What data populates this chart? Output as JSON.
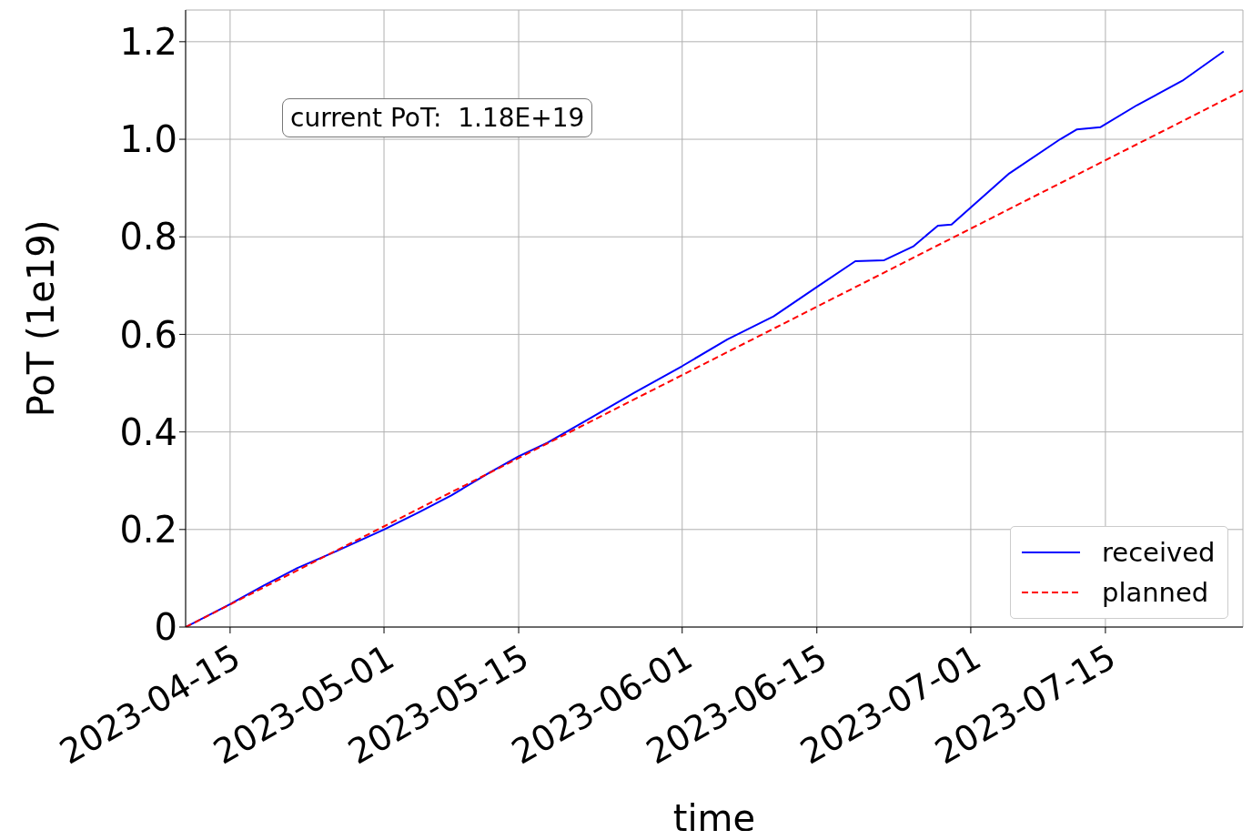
{
  "chart_data": {
    "type": "line",
    "xlabel": "time",
    "ylabel": "PoT (1e19)",
    "annotations": [
      "current PoT:  1.18E+19"
    ],
    "xlim": [
      "2023-04-10T09:00",
      "2023-07-29T07:00"
    ],
    "xticks": [
      "2023-04-15",
      "2023-05-01",
      "2023-05-15",
      "2023-06-01",
      "2023-06-15",
      "2023-07-01",
      "2023-07-15"
    ],
    "ylim": [
      0,
      1.265
    ],
    "yticks": [
      0,
      {
        "value": 0.2,
        "label": "0.2"
      },
      {
        "value": 0.4,
        "label": "0.4"
      },
      {
        "value": 0.6,
        "label": "0.6"
      },
      {
        "value": 0.8,
        "label": "0.8"
      },
      {
        "value": 1.0,
        "label": "1.0"
      },
      {
        "value": 1.2,
        "label": "1.2"
      }
    ],
    "grid": true,
    "legend": "bottom right",
    "series": [
      {
        "name": "received",
        "color": "#0000ff",
        "line_style": "solid",
        "x": [
          "2023-04-10T09:00",
          "2023-04-15",
          "2023-04-18T12:00",
          "2023-04-22",
          "2023-04-26",
          "2023-05-01",
          "2023-05-04T14:00",
          "2023-05-08",
          "2023-05-12",
          "2023-05-15",
          "2023-05-18",
          "2023-05-22T14:00",
          "2023-05-27",
          "2023-06-01",
          "2023-06-05T17:00",
          "2023-06-10T12:00",
          "2023-06-15",
          "2023-06-19",
          "2023-06-22",
          "2023-06-25",
          "2023-06-27T14:00",
          "2023-06-29",
          "2023-07-01",
          "2023-07-05",
          "2023-07-10T07:00",
          "2023-07-12",
          "2023-07-14T12:00",
          "2023-07-18T07:00",
          "2023-07-23",
          "2023-07-27T07:00"
        ],
        "values": [
          0,
          0.047,
          0.085,
          0.121,
          0.155,
          0.2,
          0.235,
          0.27,
          0.317,
          0.35,
          0.378,
          0.43,
          0.48,
          0.535,
          0.59,
          0.637,
          0.697,
          0.75,
          0.752,
          0.78,
          0.823,
          0.825,
          0.86,
          0.93,
          1.0,
          1.02,
          1.025,
          1.07,
          1.12,
          1.18
        ]
      },
      {
        "name": "planned",
        "color": "#ff0000",
        "line_style": "dashed",
        "x": [
          "2023-04-10T09:00",
          "2023-07-29T07:00"
        ],
        "values": [
          0,
          1.1
        ]
      }
    ]
  }
}
